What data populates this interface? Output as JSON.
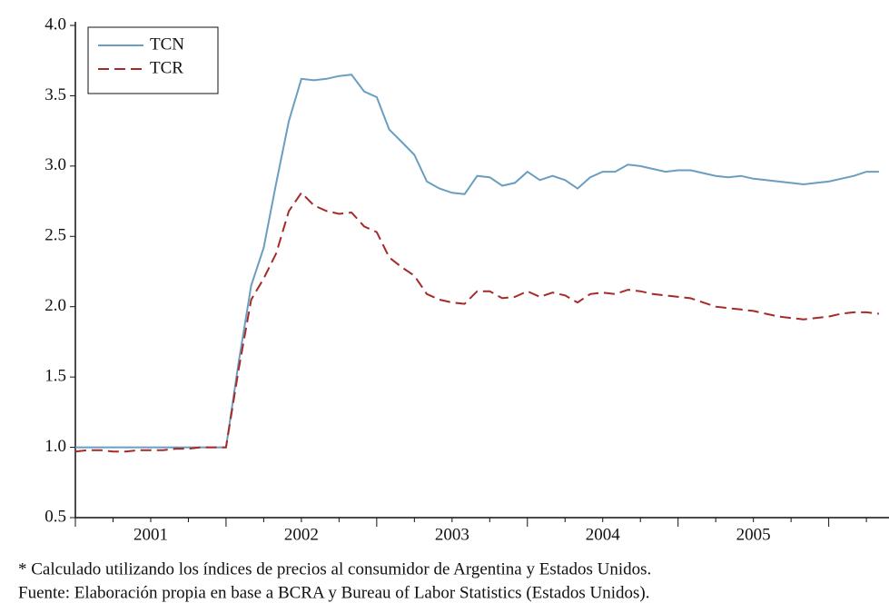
{
  "chart_data": {
    "type": "line",
    "x": [
      2001,
      2001.083,
      2001.167,
      2001.25,
      2001.333,
      2001.417,
      2001.5,
      2001.583,
      2001.667,
      2001.75,
      2001.833,
      2001.917,
      2002,
      2002.083,
      2002.167,
      2002.25,
      2002.333,
      2002.417,
      2002.5,
      2002.583,
      2002.667,
      2002.75,
      2002.833,
      2002.917,
      2003,
      2003.083,
      2003.167,
      2003.25,
      2003.333,
      2003.417,
      2003.5,
      2003.583,
      2003.667,
      2003.75,
      2003.833,
      2003.917,
      2004,
      2004.083,
      2004.167,
      2004.25,
      2004.333,
      2004.417,
      2004.5,
      2004.583,
      2004.667,
      2004.75,
      2004.833,
      2004.917,
      2005,
      2005.083,
      2005.167,
      2005.25,
      2005.333,
      2005.417,
      2005.5,
      2005.583,
      2005.667,
      2005.75,
      2005.833,
      2005.917,
      2006,
      2006.083,
      2006.167,
      2006.25,
      2006.333
    ],
    "series": [
      {
        "name": "TCN",
        "color": "#6a9ec0",
        "dashed": false,
        "values": [
          1.0,
          1.0,
          1.0,
          1.0,
          1.0,
          1.0,
          1.0,
          1.0,
          1.0,
          1.0,
          1.0,
          1.0,
          1.0,
          1.6,
          2.15,
          2.42,
          2.88,
          3.32,
          3.62,
          3.61,
          3.62,
          3.64,
          3.65,
          3.53,
          3.49,
          3.26,
          3.17,
          3.08,
          2.89,
          2.84,
          2.81,
          2.8,
          2.93,
          2.92,
          2.86,
          2.88,
          2.96,
          2.9,
          2.93,
          2.9,
          2.84,
          2.92,
          2.96,
          2.96,
          3.01,
          3.0,
          2.98,
          2.96,
          2.97,
          2.97,
          2.95,
          2.93,
          2.92,
          2.93,
          2.91,
          2.9,
          2.89,
          2.88,
          2.87,
          2.88,
          2.89,
          2.91,
          2.93,
          2.96,
          2.96
        ]
      },
      {
        "name": "TCR",
        "color": "#a52a2a",
        "dashed": true,
        "values": [
          0.97,
          0.98,
          0.98,
          0.97,
          0.97,
          0.98,
          0.98,
          0.98,
          0.99,
          0.99,
          1.0,
          1.0,
          1.0,
          1.55,
          2.05,
          2.2,
          2.38,
          2.68,
          2.81,
          2.72,
          2.68,
          2.66,
          2.67,
          2.57,
          2.53,
          2.35,
          2.28,
          2.22,
          2.09,
          2.05,
          2.03,
          2.02,
          2.11,
          2.11,
          2.06,
          2.07,
          2.11,
          2.07,
          2.1,
          2.08,
          2.03,
          2.09,
          2.1,
          2.09,
          2.12,
          2.11,
          2.09,
          2.08,
          2.07,
          2.06,
          2.03,
          2.0,
          1.99,
          1.98,
          1.97,
          1.95,
          1.93,
          1.92,
          1.91,
          1.92,
          1.93,
          1.95,
          1.96,
          1.96,
          1.95
        ]
      }
    ],
    "xlim": [
      2001,
      2006.4
    ],
    "xticks": [
      {
        "value": 2001.5,
        "label": "2001"
      },
      {
        "value": 2002.5,
        "label": "2002"
      },
      {
        "value": 2003.5,
        "label": "2003"
      },
      {
        "value": 2004.5,
        "label": "2004"
      },
      {
        "value": 2005.5,
        "label": "2005"
      }
    ],
    "ylim": [
      0.5,
      4.0
    ],
    "yticks": [
      {
        "value": 0.5,
        "label": "0.5"
      },
      {
        "value": 1.0,
        "label": "1.0"
      },
      {
        "value": 1.5,
        "label": "1.5"
      },
      {
        "value": 2.0,
        "label": "2.0"
      },
      {
        "value": 2.5,
        "label": "2.5"
      },
      {
        "value": 3.0,
        "label": "3.0"
      },
      {
        "value": 3.5,
        "label": "3.5"
      },
      {
        "value": 4.0,
        "label": "4.0"
      }
    ],
    "legend": "upper left",
    "notes": [
      "* Calculado utilizando los índices de precios al consumidor de Argentina y Estados Unidos.",
      "Fuente: Elaboración propia en base a BCRA y Bureau of Labor Statistics (Estados Unidos)."
    ]
  }
}
